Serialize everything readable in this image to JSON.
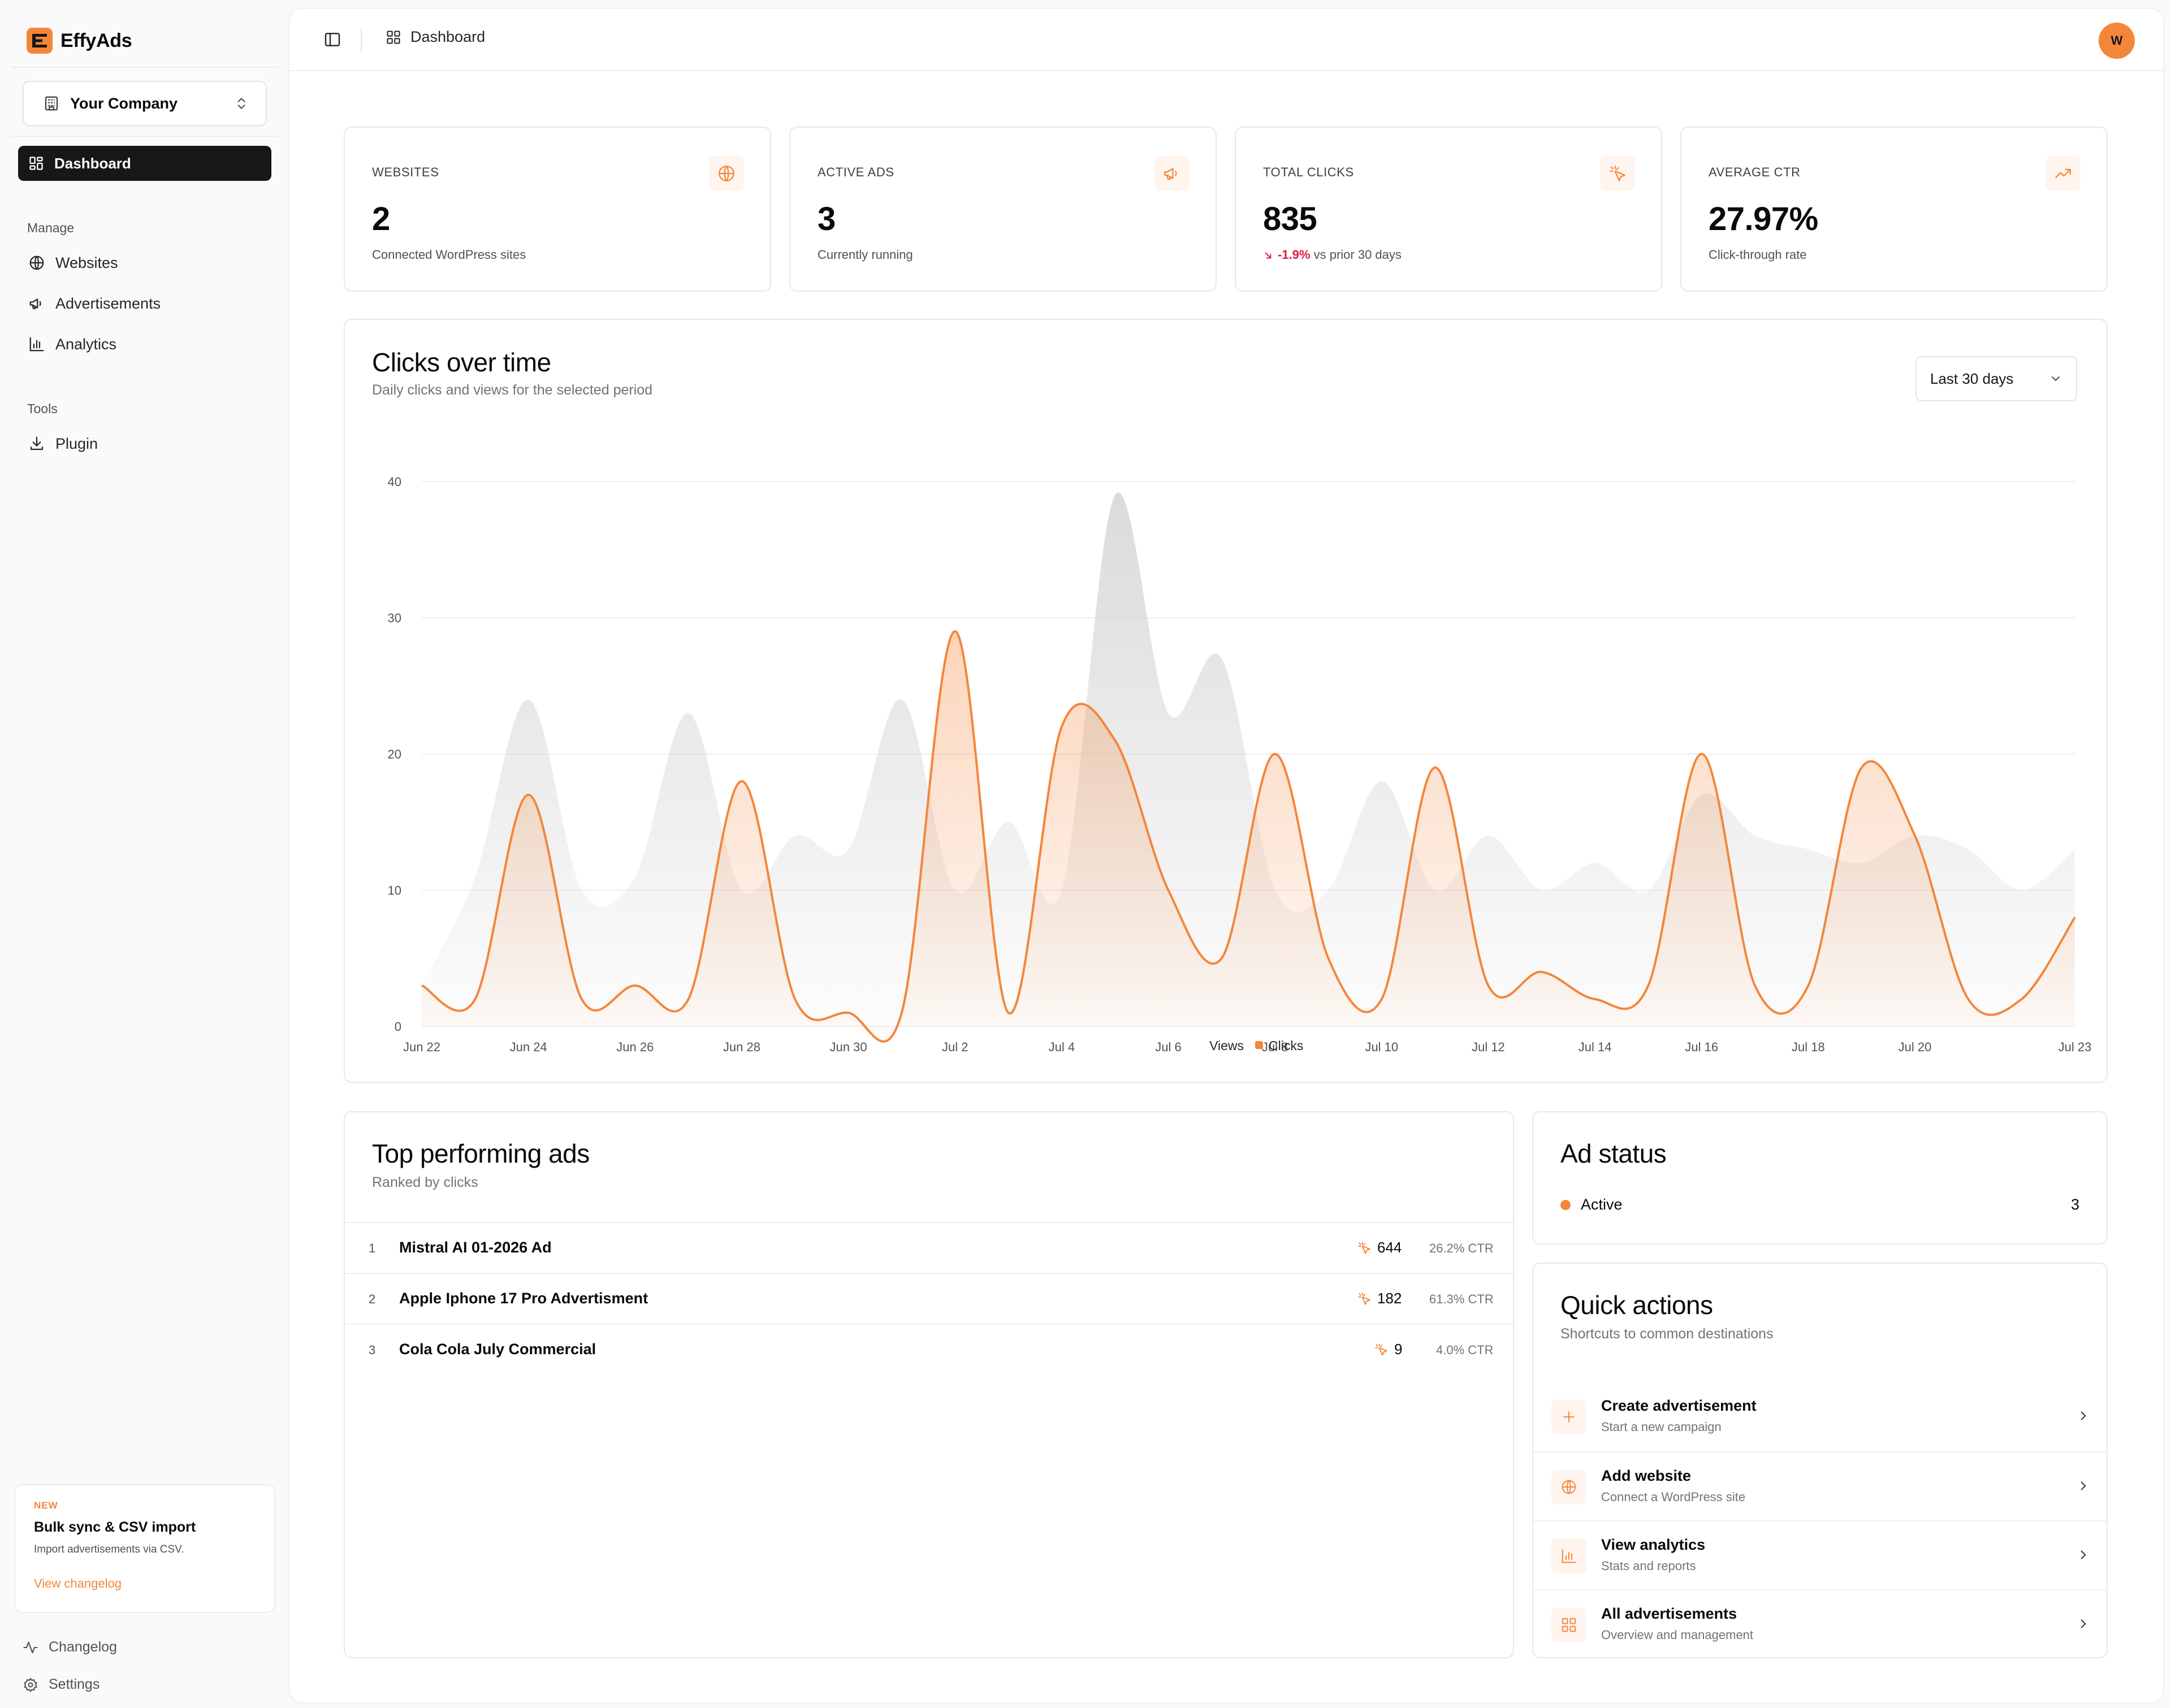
{
  "brand": {
    "name": "EffyAds"
  },
  "company_selector": {
    "label": "Your Company"
  },
  "nav": {
    "active": "Dashboard",
    "groups": [
      {
        "label": "Manage",
        "items": [
          {
            "label": "Websites",
            "icon": "globe-icon"
          },
          {
            "label": "Advertisements",
            "icon": "megaphone-icon"
          },
          {
            "label": "Analytics",
            "icon": "bar-chart-icon"
          }
        ]
      },
      {
        "label": "Tools",
        "items": [
          {
            "label": "Plugin",
            "icon": "download-icon"
          }
        ]
      }
    ]
  },
  "promo": {
    "badge": "NEW",
    "title": "Bulk sync & CSV import",
    "description": "Import advertisements via CSV.",
    "link": "View changelog"
  },
  "footer_nav": [
    {
      "label": "Changelog",
      "icon": "activity-icon"
    },
    {
      "label": "Settings",
      "icon": "gear-icon"
    }
  ],
  "topbar": {
    "breadcrumb": "Dashboard",
    "avatar_initial": "W"
  },
  "stats": [
    {
      "label": "WEBSITES",
      "value": "2",
      "sub": "Connected WordPress sites",
      "icon": "globe-icon"
    },
    {
      "label": "ACTIVE ADS",
      "value": "3",
      "sub": "Currently running",
      "icon": "megaphone-icon"
    },
    {
      "label": "TOTAL CLICKS",
      "value": "835",
      "delta": "-1.9%",
      "sub": "vs prior 30 days",
      "icon": "pointer-click-icon"
    },
    {
      "label": "AVERAGE CTR",
      "value": "27.97%",
      "sub": "Click-through rate",
      "icon": "trending-up-icon"
    }
  ],
  "clicks_card": {
    "title": "Clicks over time",
    "subtitle": "Daily clicks and views for the selected period",
    "range": "Last 30 days"
  },
  "chart_data": {
    "type": "area",
    "x": [
      "Jun 22",
      "Jun 23",
      "Jun 24",
      "Jun 25",
      "Jun 26",
      "Jun 27",
      "Jun 28",
      "Jun 29",
      "Jun 30",
      "Jul 1",
      "Jul 2",
      "Jul 3",
      "Jul 4",
      "Jul 5",
      "Jul 6",
      "Jul 7",
      "Jul 8",
      "Jul 9",
      "Jul 10",
      "Jul 11",
      "Jul 12",
      "Jul 13",
      "Jul 14",
      "Jul 15",
      "Jul 16",
      "Jul 17",
      "Jul 18",
      "Jul 19",
      "Jul 20",
      "Jul 21",
      "Jul 22",
      "Jul 23"
    ],
    "x_ticks": [
      "Jun 22",
      "Jun 24",
      "Jun 26",
      "Jun 28",
      "Jun 30",
      "Jul 2",
      "Jul 4",
      "Jul 6",
      "Jul 8",
      "Jul 10",
      "Jul 12",
      "Jul 14",
      "Jul 16",
      "Jul 18",
      "Jul 20",
      "Jul 23"
    ],
    "series": [
      {
        "name": "Views",
        "color": "#d4d4d4",
        "values": [
          3,
          11,
          24,
          10,
          11,
          23,
          10,
          14,
          13,
          24,
          10,
          15,
          10,
          39,
          23,
          27,
          10,
          10,
          18,
          10,
          14,
          10,
          12,
          10,
          17,
          14,
          13,
          12,
          14,
          13,
          10,
          13
        ]
      },
      {
        "name": "Clicks",
        "color": "#f4863a",
        "values": [
          3,
          2,
          17,
          2,
          3,
          2,
          18,
          2,
          1,
          1,
          29,
          1,
          22,
          21,
          10,
          5,
          20,
          5,
          2,
          19,
          3,
          4,
          2,
          3,
          20,
          3,
          3,
          19,
          14,
          2,
          2,
          8
        ]
      }
    ],
    "ylim": [
      0,
      40
    ],
    "y_ticks": [
      0,
      10,
      20,
      30,
      40
    ],
    "legend": "bottom-center",
    "grid": true
  },
  "top_ads": {
    "title": "Top performing ads",
    "subtitle": "Ranked by clicks",
    "rows": [
      {
        "rank": "1",
        "name": "Mistral AI 01-2026 Ad",
        "clicks": "644",
        "ctr": "26.2% CTR"
      },
      {
        "rank": "2",
        "name": "Apple Iphone 17 Pro Advertisment",
        "clicks": "182",
        "ctr": "61.3% CTR"
      },
      {
        "rank": "3",
        "name": "Cola Cola July Commercial",
        "clicks": "9",
        "ctr": "4.0% CTR"
      }
    ]
  },
  "ad_status": {
    "title": "Ad status",
    "items": [
      {
        "label": "Active",
        "count": "3",
        "color": "#f4863a"
      }
    ]
  },
  "quick_actions": {
    "title": "Quick actions",
    "subtitle": "Shortcuts to common destinations",
    "items": [
      {
        "title": "Create advertisement",
        "sub": "Start a new campaign",
        "icon": "plus-icon"
      },
      {
        "title": "Add website",
        "sub": "Connect a WordPress site",
        "icon": "globe-icon"
      },
      {
        "title": "View analytics",
        "sub": "Stats and reports",
        "icon": "bar-chart-icon"
      },
      {
        "title": "All advertisements",
        "sub": "Overview and management",
        "icon": "grid-icon"
      }
    ]
  }
}
